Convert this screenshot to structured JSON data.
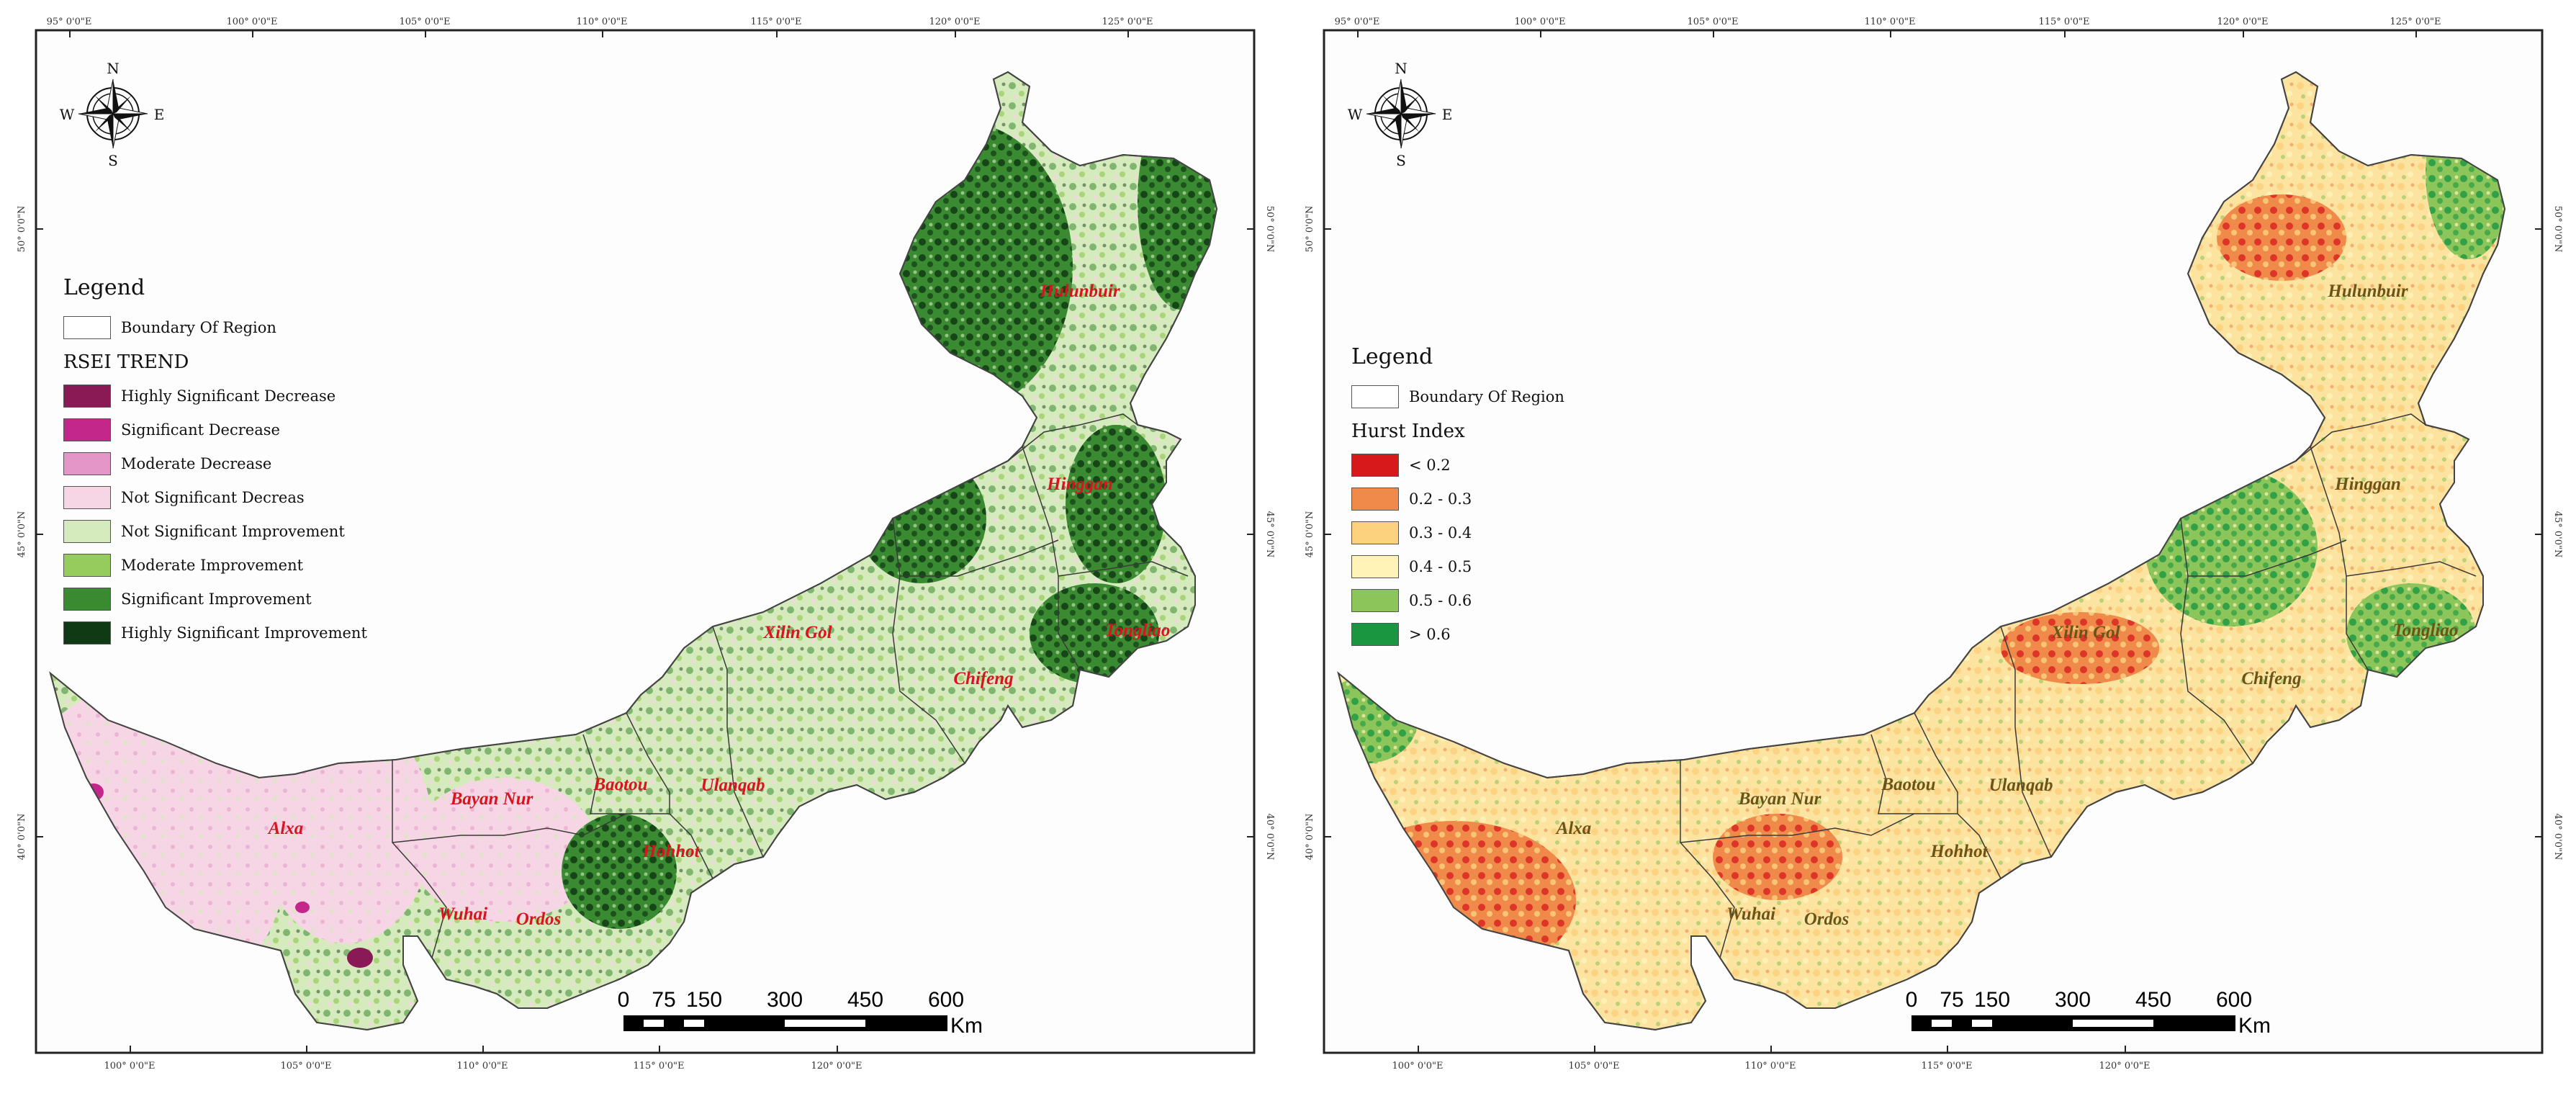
{
  "panels": [
    {
      "id": "rsei",
      "top_longitudes": [
        "95° 0'0\"E",
        "100° 0'0\"E",
        "105° 0'0\"E",
        "110° 0'0\"E",
        "115° 0'0\"E",
        "120° 0'0\"E",
        "125° 0'0\"E"
      ],
      "bottom_longitudes": [
        "100° 0'0\"E",
        "105° 0'0\"E",
        "110° 0'0\"E",
        "115° 0'0\"E",
        "120° 0'0\"E"
      ],
      "latitudes": [
        "50° 0'0\"N",
        "45° 0'0\"N",
        "40° 0'0\"N"
      ],
      "compass": {
        "n": "N",
        "s": "S",
        "e": "E",
        "w": "W"
      },
      "legend": {
        "title": "Legend",
        "boundary": "Boundary Of Region",
        "subtitle": "RSEI TREND",
        "items": [
          {
            "label": "Highly Significant Decrease",
            "color": "#8a1a56"
          },
          {
            "label": "Significant Decrease",
            "color": "#c4278a"
          },
          {
            "label": "Moderate Decrease",
            "color": "#e596c8"
          },
          {
            "label": "Not Significant Decreas",
            "color": "#f6d5e5"
          },
          {
            "label": "Not Significant Improvement",
            "color": "#d6ebbd"
          },
          {
            "label": "Moderate Improvement",
            "color": "#96cb5e"
          },
          {
            "label": "Significant Improvement",
            "color": "#3a8a32"
          },
          {
            "label": "Highly Significant Improvement",
            "color": "#0f3a14"
          }
        ]
      },
      "regions": [
        "Hulunbuir",
        "Hinggan",
        "Tongliao",
        "Chifeng",
        "Xilin Gol",
        "Ulanqab",
        "Baotou",
        "Hohhot",
        "Bayan Nur",
        "Ordos",
        "Wuhai",
        "Alxa"
      ],
      "label_color": "#d8141e",
      "scale": {
        "ticks": [
          "0",
          "75",
          "150",
          "300",
          "450",
          "600"
        ],
        "unit": "Km"
      }
    },
    {
      "id": "hurst",
      "top_longitudes": [
        "95° 0'0\"E",
        "100° 0'0\"E",
        "105° 0'0\"E",
        "110° 0'0\"E",
        "115° 0'0\"E",
        "120° 0'0\"E",
        "125° 0'0\"E"
      ],
      "bottom_longitudes": [
        "100° 0'0\"E",
        "105° 0'0\"E",
        "110° 0'0\"E",
        "115° 0'0\"E",
        "120° 0'0\"E"
      ],
      "latitudes": [
        "50° 0'0\"N",
        "45° 0'0\"N",
        "40° 0'0\"N"
      ],
      "compass": {
        "n": "N",
        "s": "S",
        "e": "E",
        "w": "W"
      },
      "legend": {
        "title": "Legend",
        "boundary": "Boundary Of Region",
        "subtitle": "Hurst Index",
        "items": [
          {
            "label": "< 0.2",
            "color": "#d7191c"
          },
          {
            "label": "0.2 - 0.3",
            "color": "#f08a4b"
          },
          {
            "label": "0.3 - 0.4",
            "color": "#fcd27f"
          },
          {
            "label": "0.4 - 0.5",
            "color": "#fff3b8"
          },
          {
            "label": "0.5 - 0.6",
            "color": "#8cc65b"
          },
          {
            "label": "> 0.6",
            "color": "#1a9641"
          }
        ]
      },
      "regions": [
        "Hulunbuir",
        "Hinggan",
        "Tongliao",
        "Chifeng",
        "Xilin Gol",
        "Ulanqab",
        "Baotou",
        "Hohhot",
        "Bayan Nur",
        "Ordos",
        "Wuhai",
        "Alxa"
      ],
      "label_color": "#6b5418",
      "scale": {
        "ticks": [
          "0",
          "75",
          "150",
          "300",
          "450",
          "600"
        ],
        "unit": "Km"
      }
    }
  ]
}
